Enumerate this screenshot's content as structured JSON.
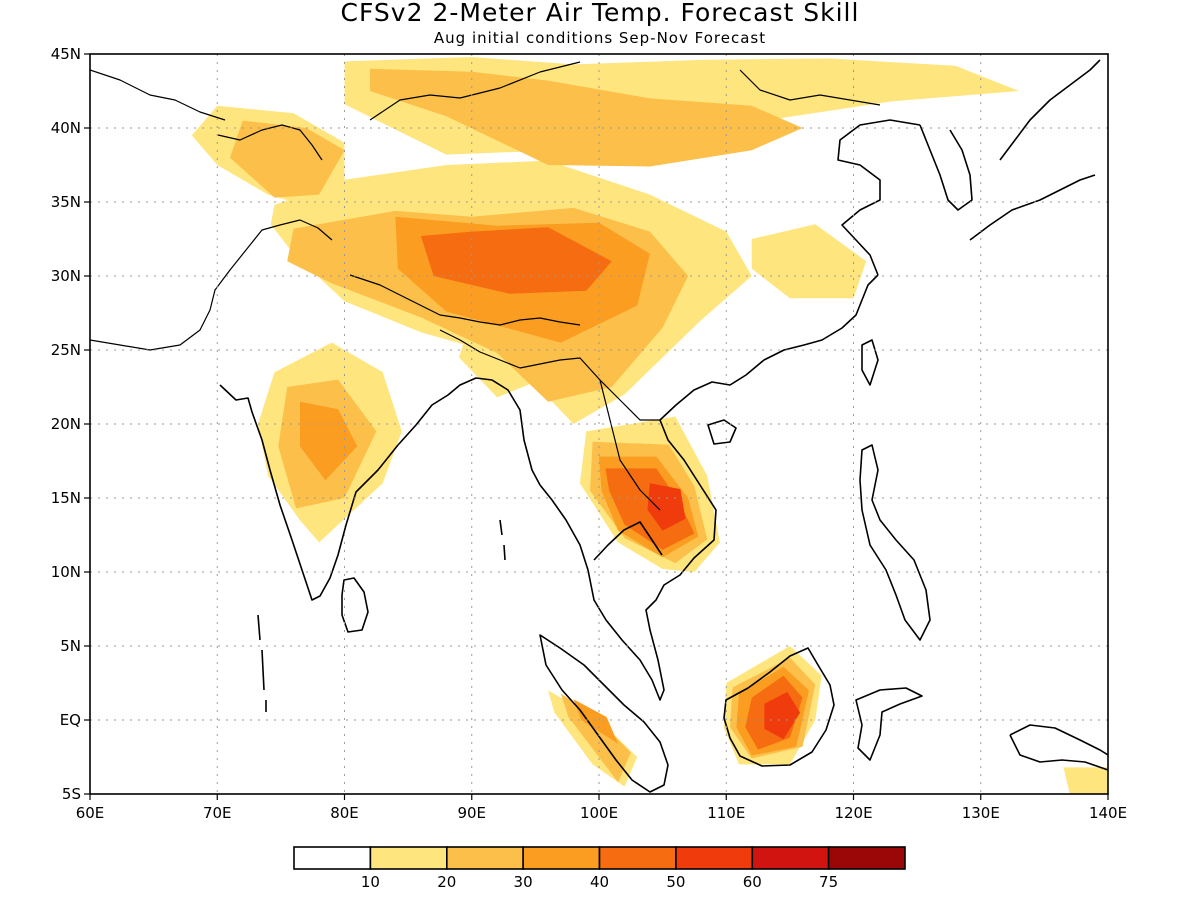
{
  "header": {
    "title": "CFSv2 2-Meter Air Temp. Forecast Skill",
    "subtitle": "Aug initial conditions  Sep-Nov Forecast"
  },
  "map": {
    "lon_range": [
      60,
      140
    ],
    "lat_range": [
      -5,
      45
    ],
    "x_ticks": [
      {
        "value": 60,
        "label": "60E"
      },
      {
        "value": 70,
        "label": "70E"
      },
      {
        "value": 80,
        "label": "80E"
      },
      {
        "value": 90,
        "label": "90E"
      },
      {
        "value": 100,
        "label": "100E"
      },
      {
        "value": 110,
        "label": "110E"
      },
      {
        "value": 120,
        "label": "120E"
      },
      {
        "value": 130,
        "label": "130E"
      },
      {
        "value": 140,
        "label": "140E"
      }
    ],
    "y_ticks": [
      {
        "value": 45,
        "label": "45N"
      },
      {
        "value": 40,
        "label": "40N"
      },
      {
        "value": 35,
        "label": "35N"
      },
      {
        "value": 30,
        "label": "30N"
      },
      {
        "value": 25,
        "label": "25N"
      },
      {
        "value": 20,
        "label": "20N"
      },
      {
        "value": 15,
        "label": "15N"
      },
      {
        "value": 10,
        "label": "10N"
      },
      {
        "value": 5,
        "label": "5N"
      },
      {
        "value": 0,
        "label": "EQ"
      },
      {
        "value": -5,
        "label": "5S"
      }
    ],
    "grid": "dotted"
  },
  "colorbar": {
    "colors": [
      "#ffffff",
      "#fee57d",
      "#fbbf4a",
      "#fa9d20",
      "#f66c10",
      "#f03c0c",
      "#d21410",
      "#9b0606"
    ],
    "labels": [
      "10",
      "20",
      "30",
      "40",
      "50",
      "60",
      "75"
    ]
  },
  "skill_regions": [
    {
      "level": 1,
      "lons": [
        80,
        90,
        98,
        108,
        118,
        128,
        133,
        123,
        113,
        100,
        88,
        80
      ],
      "lats": [
        44.5,
        44.8,
        44.3,
        44.6,
        44.7,
        44.2,
        42.5,
        41.8,
        40.5,
        38.6,
        38.2,
        41.6
      ]
    },
    {
      "level": 1,
      "lons": [
        70,
        76,
        80,
        80,
        78,
        74,
        70,
        68
      ],
      "lats": [
        41.5,
        41,
        39,
        36.5,
        34.5,
        35.5,
        37.5,
        39.5
      ]
    },
    {
      "level": 1,
      "lons": [
        74.5,
        80,
        88,
        96,
        104,
        110,
        112,
        108,
        102,
        98,
        93,
        86,
        80,
        76,
        74.2
      ],
      "lats": [
        34.8,
        36.5,
        37.5,
        37.8,
        35.5,
        33,
        30,
        27,
        22,
        20,
        24.5,
        26.2,
        28.3,
        31.5,
        33.5
      ]
    },
    {
      "level": 1,
      "lons": [
        74.5,
        79,
        83,
        84.5,
        83,
        78,
        76.5,
        74,
        73.2
      ],
      "lats": [
        23.5,
        25.5,
        23.5,
        19.5,
        16,
        12,
        13.5,
        16.5,
        20
      ]
    },
    {
      "level": 1,
      "lons": [
        90,
        94.5,
        96,
        92,
        89
      ],
      "lats": [
        27.2,
        26.8,
        23.2,
        21.8,
        24.5
      ]
    },
    {
      "level": 1,
      "lons": [
        112,
        117,
        121,
        120,
        115,
        112
      ],
      "lats": [
        32.5,
        33.5,
        31,
        28.5,
        28.5,
        30.5
      ]
    },
    {
      "level": 1,
      "lons": [
        99,
        106,
        108.5,
        109.5,
        107.5,
        105,
        101.5,
        98.5
      ],
      "lats": [
        19.5,
        20.5,
        16.5,
        12,
        10,
        10.2,
        12,
        16
      ]
    },
    {
      "level": 1,
      "lons": [
        110,
        115,
        117.5,
        117,
        115,
        111,
        109.8
      ],
      "lats": [
        2.5,
        5,
        3,
        0,
        -3,
        -3,
        -0.5
      ]
    },
    {
      "level": 1,
      "lons": [
        96,
        100,
        103,
        102,
        99.5,
        96.5
      ],
      "lats": [
        2,
        0,
        -2.5,
        -4.5,
        -3,
        0.5
      ]
    },
    {
      "level": 1,
      "lons": [
        136.5,
        140,
        140,
        137
      ],
      "lats": [
        -3.2,
        -3.2,
        -5,
        -5
      ]
    },
    {
      "level": 2,
      "lons": [
        82,
        90,
        96,
        104,
        112,
        116,
        112,
        104,
        96,
        88,
        82
      ],
      "lats": [
        44,
        43.8,
        43.2,
        42,
        41.5,
        40,
        38.5,
        37.4,
        37.5,
        40.8,
        42.5
      ]
    },
    {
      "level": 2,
      "lons": [
        72,
        77,
        80,
        78,
        74.5,
        71
      ],
      "lats": [
        40.5,
        40,
        38.5,
        35.5,
        35.3,
        38
      ]
    },
    {
      "level": 2,
      "lons": [
        76,
        84,
        90,
        98,
        104,
        107,
        105,
        101,
        96,
        92,
        86,
        79,
        75.5
      ],
      "lats": [
        33.2,
        34.4,
        34,
        34.6,
        33,
        30,
        26.5,
        22.5,
        21.5,
        24.8,
        27.2,
        29.5,
        31
      ]
    },
    {
      "level": 2,
      "lons": [
        75.5,
        79.5,
        82.5,
        80,
        76.2,
        74.8
      ],
      "lats": [
        22.5,
        23,
        19.5,
        15,
        14.3,
        18.5
      ]
    },
    {
      "level": 2,
      "lons": [
        99.5,
        105.5,
        107.5,
        108.5,
        106,
        102,
        99.3
      ],
      "lats": [
        18.8,
        18.6,
        15.8,
        12.2,
        10.6,
        12.3,
        15.5
      ]
    },
    {
      "level": 2,
      "lons": [
        110.5,
        115,
        117,
        116,
        112,
        110.3
      ],
      "lats": [
        2.2,
        4.2,
        2.4,
        -1.8,
        -2.6,
        -0.5
      ]
    },
    {
      "level": 2,
      "lons": [
        97,
        100,
        102.5,
        101.5,
        97.6
      ],
      "lats": [
        1.8,
        0,
        -2.2,
        -4.2,
        0.2
      ]
    },
    {
      "level": 3,
      "lons": [
        84,
        92,
        100,
        104,
        103,
        97,
        88,
        84.2
      ],
      "lats": [
        34,
        33.4,
        33.6,
        31.5,
        28,
        25.5,
        27.6,
        30.5
      ]
    },
    {
      "level": 3,
      "lons": [
        76.5,
        79.5,
        81,
        78.5,
        76.5
      ],
      "lats": [
        21.5,
        21,
        18.5,
        16.2,
        18.5
      ]
    },
    {
      "level": 3,
      "lons": [
        100,
        104.5,
        107,
        107.8,
        105,
        101.5,
        100.2
      ],
      "lats": [
        17.8,
        17.8,
        15,
        12.4,
        11,
        12.8,
        15.5
      ]
    },
    {
      "level": 3,
      "lons": [
        111,
        114.5,
        116.5,
        115.5,
        112,
        110.8
      ],
      "lats": [
        1.8,
        3.6,
        2,
        -1.8,
        -2.4,
        -0.5
      ]
    },
    {
      "level": 3,
      "lons": [
        98,
        100.6,
        101.5,
        98.6
      ],
      "lats": [
        1.4,
        0.2,
        -1.6,
        0
      ]
    },
    {
      "level": 4,
      "lons": [
        86,
        90,
        96,
        101,
        99,
        93,
        87
      ],
      "lats": [
        32.7,
        33,
        33.3,
        31,
        29,
        28.8,
        30
      ]
    },
    {
      "level": 4,
      "lons": [
        100.5,
        104.5,
        106.4,
        107.5,
        105,
        102,
        100.8
      ],
      "lats": [
        17,
        17,
        14.6,
        12.6,
        11.5,
        13.2,
        15.5
      ]
    },
    {
      "level": 4,
      "lons": [
        112,
        114.5,
        116,
        115,
        112.5,
        111.5
      ],
      "lats": [
        1.5,
        3,
        1.5,
        -1.2,
        -2,
        -0.5
      ]
    },
    {
      "level": 5,
      "lons": [
        113,
        114.8,
        115.8,
        114.5,
        113
      ],
      "lats": [
        1.1,
        1.9,
        0.5,
        -1.3,
        -0.6
      ]
    },
    {
      "level": 5,
      "lons": [
        104,
        106.4,
        106.8,
        105,
        103.8
      ],
      "lats": [
        16,
        15.6,
        13.6,
        12.8,
        14.2
      ]
    }
  ]
}
